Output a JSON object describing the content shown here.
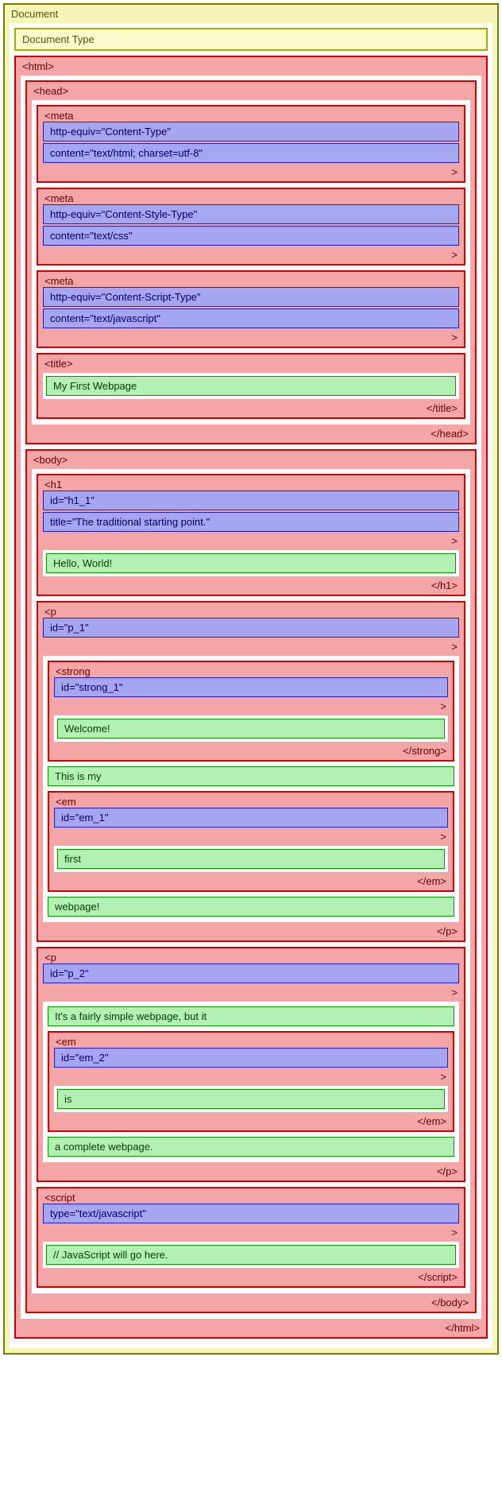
{
  "colors": {
    "doc_border": "#7a7a00",
    "doc_bg": "#f5f5b8",
    "doctype_border": "#a8a800",
    "doctype_bg": "#fbfbcc",
    "tag_border": "#cc0000",
    "tag_bg": "#f4a6a6",
    "attr_border": "#2020cc",
    "attr_bg": "#a6a6f0",
    "text_border": "#009900",
    "text_bg": "#b4f0b4"
  },
  "doc_label": "Document",
  "doctype_label": "Document Type",
  "html": {
    "open": "<html>",
    "close": "</html>"
  },
  "head": {
    "open": "<head>",
    "close": "</head>"
  },
  "meta1": {
    "open": "<meta",
    "attr1": "http-equiv=\"Content-Type\"",
    "attr2": "content=\"text/html; charset=utf-8\"",
    "gt": ">"
  },
  "meta2": {
    "open": "<meta",
    "attr1": "http-equiv=\"Content-Style-Type\"",
    "attr2": "content=\"text/css\"",
    "gt": ">"
  },
  "meta3": {
    "open": "<meta",
    "attr1": "http-equiv=\"Content-Script-Type\"",
    "attr2": "content=\"text/javascript\"",
    "gt": ">"
  },
  "title": {
    "open": "<title>",
    "text": "My First Webpage",
    "close": "</title>"
  },
  "bodytag": {
    "open": "<body>",
    "close": "</body>"
  },
  "h1": {
    "open": "<h1",
    "attr1": "id=\"h1_1\"",
    "attr2": "title=\"The traditional starting point.\"",
    "gt": ">",
    "text": "Hello, World!",
    "close": "</h1>"
  },
  "p1": {
    "open": "<p",
    "attr1": "id=\"p_1\"",
    "gt": ">",
    "close": "</p>"
  },
  "strong1": {
    "open": "<strong",
    "attr1": "id=\"strong_1\"",
    "gt": ">",
    "text": "Welcome!",
    "close": "</strong>"
  },
  "p1_text1": "This is my",
  "em1": {
    "open": "<em",
    "attr1": "id=\"em_1\"",
    "gt": ">",
    "text": "first",
    "close": "</em>"
  },
  "p1_text2": "webpage!",
  "p2": {
    "open": "<p",
    "attr1": "id=\"p_2\"",
    "gt": ">",
    "text1": "It's a fairly simple webpage, but it",
    "text2": "a complete webpage.",
    "close": "</p>"
  },
  "em2": {
    "open": "<em",
    "attr1": "id=\"em_2\"",
    "gt": ">",
    "text": "is",
    "close": "</em>"
  },
  "script1": {
    "open": "<script",
    "attr1": "type=\"text/javascript\"",
    "gt": ">",
    "text": "// JavaScript will go here.",
    "close": "</script>"
  }
}
